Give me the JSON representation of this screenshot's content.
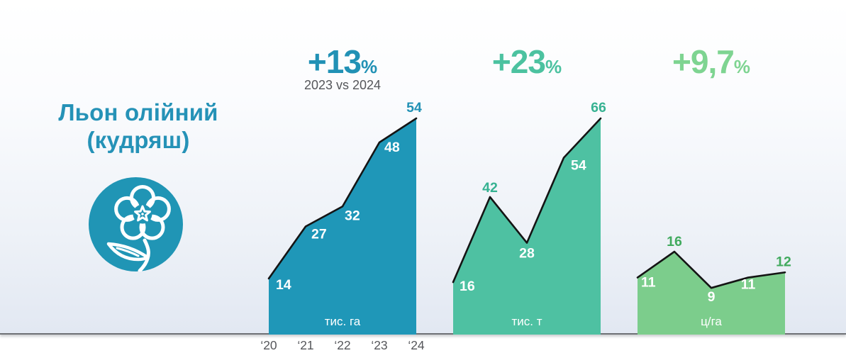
{
  "page": {
    "title_line1": "Льон олійний",
    "title_line2": "(кудряш)",
    "title_color": "#2592b7",
    "icon": "flax-flower-icon",
    "icon_color": "#2095b5"
  },
  "chart_data": [
    {
      "type": "area",
      "title": "+13%",
      "headline_value": "+13",
      "headline_suffix": "%",
      "headline_color": "#2191b5",
      "subtitle": "2023 vs 2024",
      "unit_label": "тис. га",
      "categories": [
        "‘20",
        "‘21",
        "‘22",
        "‘23",
        "‘24"
      ],
      "values": [
        14,
        27,
        32,
        48,
        54
      ],
      "ylim": [
        0,
        54
      ],
      "fill_color": "#1f97b8",
      "outline_color": "#141414",
      "inside_label_color": "#ffffff",
      "outside_label_color": "#2191b5",
      "label_layout": [
        "inside",
        "inside",
        "inside",
        "inside",
        "outside"
      ],
      "show_x_labels": true,
      "legend": "none",
      "grid": "off"
    },
    {
      "type": "area",
      "title": "+23%",
      "headline_value": "+23",
      "headline_suffix": "%",
      "headline_color": "#4cc2a0",
      "subtitle": "",
      "unit_label": "тис. т",
      "categories": [
        "‘20",
        "‘21",
        "‘22",
        "‘23",
        "‘24"
      ],
      "values": [
        16,
        42,
        28,
        54,
        66
      ],
      "ylim": [
        0,
        66
      ],
      "fill_color": "#4ec1a2",
      "outline_color": "#141414",
      "inside_label_color": "#ffffff",
      "outside_label_color": "#36b292",
      "label_layout": [
        "inside",
        "outside",
        "inside",
        "inside",
        "outside"
      ],
      "show_x_labels": false,
      "legend": "none",
      "grid": "off"
    },
    {
      "type": "area",
      "title": "+9,7%",
      "headline_value": "+9,7",
      "headline_suffix": "%",
      "headline_color": "#7ed491",
      "subtitle": "",
      "unit_label": "ц/га",
      "categories": [
        "‘20",
        "‘21",
        "‘22",
        "‘23",
        "‘24"
      ],
      "values": [
        11,
        16,
        9,
        11,
        12
      ],
      "ylim": [
        0,
        16
      ],
      "fill_color": "#7ccd8c",
      "outline_color": "#141414",
      "inside_label_color": "#ffffff",
      "outside_label_color": "#41aa5e",
      "label_layout": [
        "inside",
        "outside",
        "inside",
        "inside",
        "outside"
      ],
      "show_x_labels": false,
      "legend": "none",
      "grid": "off"
    }
  ]
}
